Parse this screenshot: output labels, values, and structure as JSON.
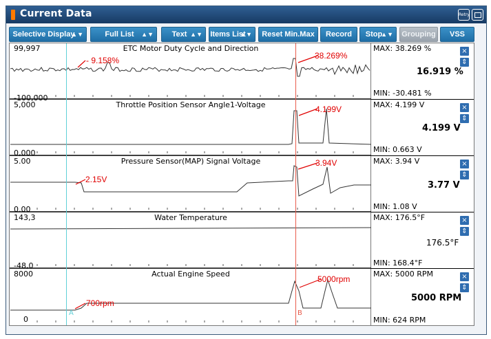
{
  "window": {
    "title": "Current Data",
    "retry_icon_text": "Retry",
    "colors": {
      "titlebar": "#1f4775",
      "toolbar_button": "#2a7fba",
      "cursor_a": "#5fd0d8",
      "cursor_b": "#e85a4a",
      "annotation": "#e00000"
    }
  },
  "toolbar": {
    "selective_display": "Selective Display",
    "full_list": "Full List",
    "text": "Text",
    "items_list": "Items List",
    "reset_min_max": "Reset Min.Max",
    "record": "Record",
    "stop": "Stop",
    "grouping": "Grouping",
    "vss": "VSS"
  },
  "cursors": {
    "a_label": "A",
    "b_label": "B"
  },
  "panels": [
    {
      "title": "ETC Motor Duty Cycle and Direction",
      "ymax": "99,997",
      "ymin": "-100,000",
      "stat_max": "MAX: 38.269 %",
      "current": "16.919 %",
      "stat_min": "MIN: -30.481 %",
      "ann_a": "- 9.158%",
      "ann_b": "38.269%"
    },
    {
      "title": "Throttle Position Sensor Angle1-Voltage",
      "ymax": "5,000",
      "ymin": "0,000",
      "stat_max": "MAX: 4.199 V",
      "current": "4.199 V",
      "stat_min": "MIN: 0.663 V",
      "ann_a": "",
      "ann_b": "4.199V"
    },
    {
      "title": "Pressure Sensor(MAP) Signal Voltage",
      "ymax": "5.00",
      "ymin": "0.00",
      "stat_max": "MAX: 3.94 V",
      "current": "3.77 V",
      "stat_min": "MIN: 1.08 V",
      "ann_a": "2.15V",
      "ann_b": "3.94V"
    },
    {
      "title": "Water Temperature",
      "ymax": "143,3",
      "ymin": "-48,0",
      "stat_max": "MAX: 176.5°F",
      "current": "176.5°F",
      "stat_min": "MIN: 168.4°F",
      "ann_a": "",
      "ann_b": ""
    },
    {
      "title": "Actual Engine Speed",
      "ymax": "8000",
      "ymin": "0",
      "stat_max": "MAX: 5000 RPM",
      "current": "5000 RPM",
      "stat_min": "MIN: 624 RPM",
      "ann_a": "700rpm",
      "ann_b": "5000rpm"
    }
  ],
  "panel_buttons": {
    "close_icon": "×",
    "toggle_icon": "⇕"
  }
}
